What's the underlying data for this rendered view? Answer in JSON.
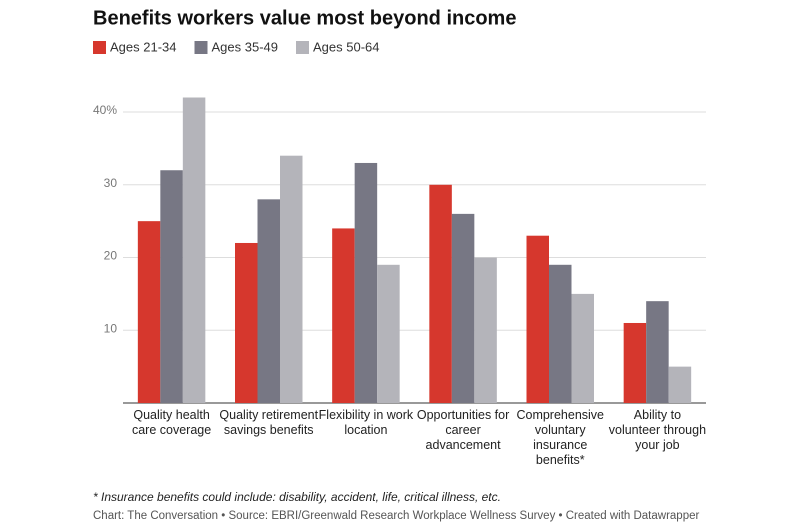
{
  "chart_data": {
    "type": "bar",
    "title": "Benefits workers value most beyond income",
    "categories": [
      "Quality health care coverage",
      "Quality retirement savings benefits",
      "Flexibility in work location",
      "Opportunities for career advancement",
      "Comprehensive voluntary insurance benefits*",
      "Ability to volunteer through your job"
    ],
    "series": [
      {
        "name": "Ages 21-34",
        "color": "#d6372d",
        "values": [
          25,
          22,
          24,
          30,
          23,
          11
        ]
      },
      {
        "name": "Ages 35-49",
        "color": "#777784",
        "values": [
          32,
          28,
          33,
          26,
          19,
          14
        ]
      },
      {
        "name": "Ages 50-64",
        "color": "#b4b4ba",
        "values": [
          42,
          34,
          19,
          20,
          15,
          5
        ]
      }
    ],
    "ylim": [
      0,
      42
    ],
    "yticks": [
      10,
      20,
      30,
      {
        "value": 40,
        "label": "40%"
      }
    ],
    "grid": true,
    "footnote": "* Insurance benefits could include: disability, accident, life, critical illness, etc.",
    "source": "Chart: The Conversation • Source: EBRI/Greenwald Research Workplace Wellness Survey • Created with Datawrapper"
  }
}
